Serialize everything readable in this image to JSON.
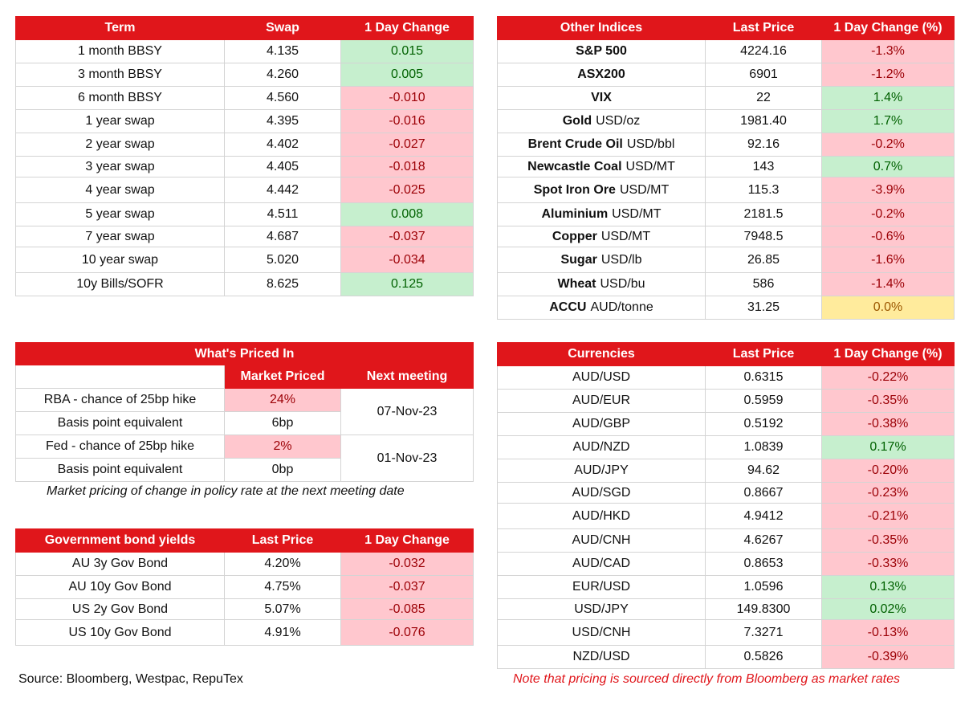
{
  "swaps": {
    "headers": [
      "Term",
      "Swap",
      "1 Day Change"
    ],
    "rows": [
      {
        "term": "1 month BBSY",
        "swap": "4.135",
        "change": "0.015",
        "dir": "pos"
      },
      {
        "term": "3 month BBSY",
        "swap": "4.260",
        "change": "0.005",
        "dir": "pos"
      },
      {
        "term": "6 month BBSY",
        "swap": "4.560",
        "change": "-0.010",
        "dir": "neg"
      },
      {
        "term": "1 year swap",
        "swap": "4.395",
        "change": "-0.016",
        "dir": "neg"
      },
      {
        "term": "2 year swap",
        "swap": "4.402",
        "change": "-0.027",
        "dir": "neg"
      },
      {
        "term": "3 year swap",
        "swap": "4.405",
        "change": "-0.018",
        "dir": "neg"
      },
      {
        "term": "4 year swap",
        "swap": "4.442",
        "change": "-0.025",
        "dir": "neg"
      },
      {
        "term": "5 year swap",
        "swap": "4.511",
        "change": "0.008",
        "dir": "pos"
      },
      {
        "term": "7 year swap",
        "swap": "4.687",
        "change": "-0.037",
        "dir": "neg"
      },
      {
        "term": "10 year swap",
        "swap": "5.020",
        "change": "-0.034",
        "dir": "neg"
      },
      {
        "term": "10y Bills/SOFR",
        "swap": "8.625",
        "change": "0.125",
        "dir": "pos"
      }
    ]
  },
  "indices": {
    "headers": [
      "Other Indices",
      "Last Price",
      "1 Day Change (%)"
    ],
    "rows": [
      {
        "name": "S&P 500",
        "unit": "",
        "price": "4224.16",
        "change": "-1.3%",
        "dir": "neg"
      },
      {
        "name": "ASX200",
        "unit": "",
        "price": "6901",
        "change": "-1.2%",
        "dir": "neg"
      },
      {
        "name": "VIX",
        "unit": "",
        "price": "22",
        "change": "1.4%",
        "dir": "pos"
      },
      {
        "name": "Gold",
        "unit": "USD/oz",
        "price": "1981.40",
        "change": "1.7%",
        "dir": "pos"
      },
      {
        "name": "Brent Crude Oil",
        "unit": "USD/bbl",
        "price": "92.16",
        "change": "-0.2%",
        "dir": "neg"
      },
      {
        "name": "Newcastle Coal",
        "unit": "USD/MT",
        "price": "143",
        "change": "0.7%",
        "dir": "pos"
      },
      {
        "name": "Spot Iron Ore",
        "unit": "USD/MT",
        "price": "115.3",
        "change": "-3.9%",
        "dir": "neg"
      },
      {
        "name": "Aluminium",
        "unit": "USD/MT",
        "price": "2181.5",
        "change": "-0.2%",
        "dir": "neg"
      },
      {
        "name": "Copper",
        "unit": "USD/MT",
        "price": "7948.5",
        "change": "-0.6%",
        "dir": "neg"
      },
      {
        "name": "Sugar",
        "unit": "USD/lb",
        "price": "26.85",
        "change": "-1.6%",
        "dir": "neg"
      },
      {
        "name": "Wheat",
        "unit": "USD/bu",
        "price": "586",
        "change": "-1.4%",
        "dir": "neg"
      },
      {
        "name": "ACCU",
        "unit": "AUD/tonne",
        "price": "31.25",
        "change": "0.0%",
        "dir": "neu"
      }
    ]
  },
  "priced": {
    "title": "What's Priced In",
    "col_market": "Market Priced",
    "col_next": "Next meeting",
    "rba_label": "RBA - chance of 25bp hike",
    "rba_value": "24%",
    "rba_bp_label": "Basis point equivalent",
    "rba_bp_value": "6bp",
    "rba_date": "07-Nov-23",
    "fed_label": "Fed - chance of 25bp hike",
    "fed_value": "2%",
    "fed_bp_label": "Basis point equivalent",
    "fed_bp_value": "0bp",
    "fed_date": "01-Nov-23",
    "note": "Market pricing of change in policy rate at the next meeting date"
  },
  "bonds": {
    "headers": [
      "Government bond yields",
      "Last Price",
      "1 Day Change"
    ],
    "rows": [
      {
        "name": "AU 3y Gov Bond",
        "price": "4.20%",
        "change": "-0.032",
        "dir": "neg"
      },
      {
        "name": "AU 10y Gov Bond",
        "price": "4.75%",
        "change": "-0.037",
        "dir": "neg"
      },
      {
        "name": "US 2y Gov Bond",
        "price": "5.07%",
        "change": "-0.085",
        "dir": "neg"
      },
      {
        "name": "US 10y Gov Bond",
        "price": "4.91%",
        "change": "-0.076",
        "dir": "neg"
      }
    ]
  },
  "currencies": {
    "headers": [
      "Currencies",
      "Last Price",
      "1 Day Change (%)"
    ],
    "rows": [
      {
        "pair": "AUD/USD",
        "price": "0.6315",
        "change": "-0.22%",
        "dir": "neg"
      },
      {
        "pair": "AUD/EUR",
        "price": "0.5959",
        "change": "-0.35%",
        "dir": "neg"
      },
      {
        "pair": "AUD/GBP",
        "price": "0.5192",
        "change": "-0.38%",
        "dir": "neg"
      },
      {
        "pair": "AUD/NZD",
        "price": "1.0839",
        "change": "0.17%",
        "dir": "pos"
      },
      {
        "pair": "AUD/JPY",
        "price": "94.62",
        "change": "-0.20%",
        "dir": "neg"
      },
      {
        "pair": "AUD/SGD",
        "price": "0.8667",
        "change": "-0.23%",
        "dir": "neg"
      },
      {
        "pair": "AUD/HKD",
        "price": "4.9412",
        "change": "-0.21%",
        "dir": "neg"
      },
      {
        "pair": "AUD/CNH",
        "price": "4.6267",
        "change": "-0.35%",
        "dir": "neg"
      },
      {
        "pair": "AUD/CAD",
        "price": "0.8653",
        "change": "-0.33%",
        "dir": "neg"
      },
      {
        "pair": "EUR/USD",
        "price": "1.0596",
        "change": "0.13%",
        "dir": "pos"
      },
      {
        "pair": "USD/JPY",
        "price": "149.8300",
        "change": "0.02%",
        "dir": "pos"
      },
      {
        "pair": "USD/CNH",
        "price": "7.3271",
        "change": "-0.13%",
        "dir": "neg"
      },
      {
        "pair": "NZD/USD",
        "price": "0.5826",
        "change": "-0.39%",
        "dir": "neg"
      }
    ]
  },
  "footer": {
    "source": "Source: Bloomberg, Westpac, RepuTex",
    "note": "Note that pricing is sourced directly from Bloomberg as market rates"
  }
}
